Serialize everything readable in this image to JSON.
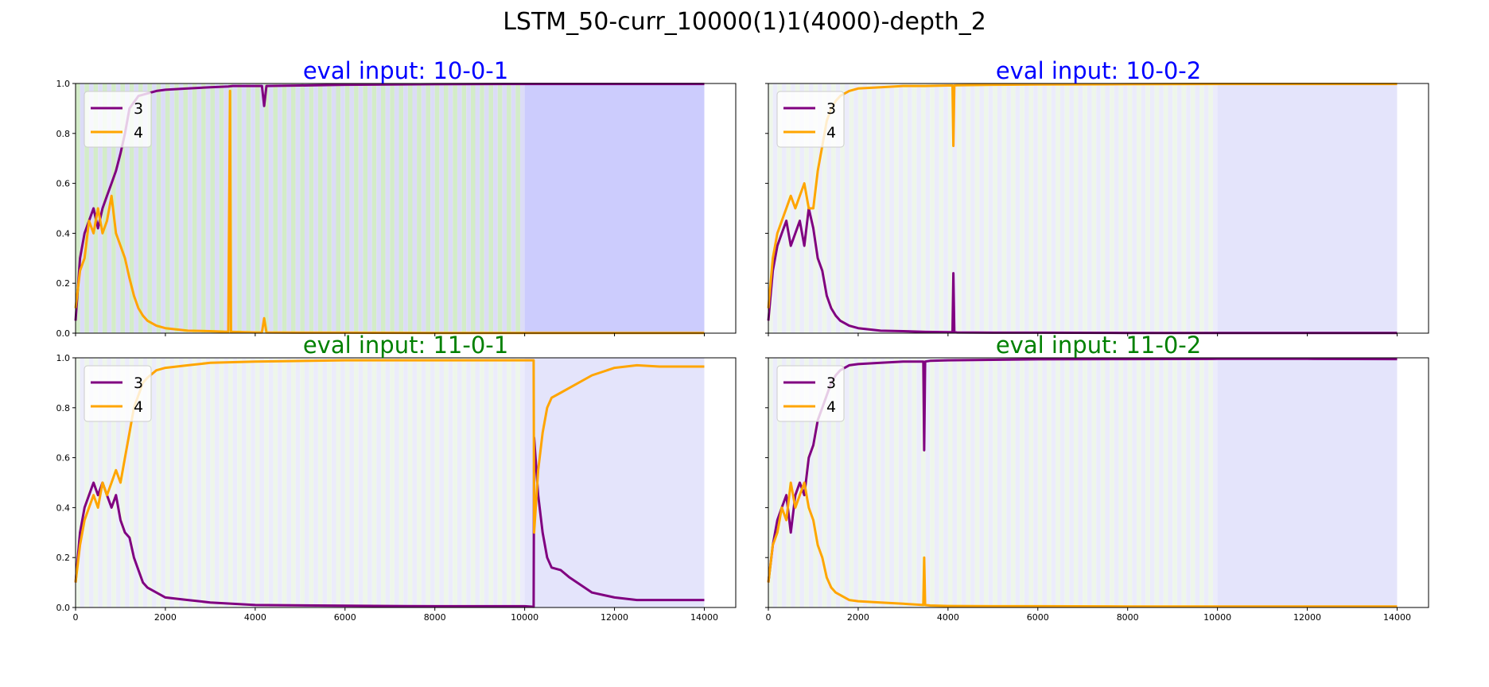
{
  "figure": {
    "title": "LSTM_50-curr_10000(1)1(4000)-depth_2"
  },
  "colors": {
    "series_3": "#800080",
    "series_4": "#ffa500",
    "title_blue": "#0000ff",
    "title_green": "#008000",
    "band_green": "#d3ecc8",
    "band_blue_light": "#dcdcf7",
    "band_blue_strong": "#ccccfd",
    "band_blue_faint": "#e4e4fb"
  },
  "chart_data": [
    {
      "type": "line",
      "title": "eval input: 10-0-1",
      "title_color": "blue",
      "xlim": [
        0,
        14700
      ],
      "ylim": [
        0,
        1
      ],
      "xticks": [
        0,
        2000,
        4000,
        6000,
        8000,
        10000,
        12000,
        14000
      ],
      "xtick_labels": [],
      "yticks": [
        0.0,
        0.2,
        0.4,
        0.6,
        0.8,
        1.0
      ],
      "ytick_labels": [
        "0.0",
        "0.2",
        "0.4",
        "0.6",
        "0.8",
        "1.0"
      ],
      "legend": "upper-left",
      "background": "green bands to 10000, solid blue 10000-14000",
      "series": [
        {
          "name": "3",
          "color": "purple",
          "x": [
            0,
            100,
            200,
            300,
            400,
            500,
            600,
            700,
            800,
            900,
            1000,
            1100,
            1200,
            1400,
            1600,
            1800,
            2000,
            2500,
            3000,
            3400,
            3500,
            4000,
            4150,
            4200,
            4250,
            5000,
            6000,
            8000,
            10000,
            12000,
            14000
          ],
          "y": [
            0.05,
            0.3,
            0.4,
            0.45,
            0.5,
            0.42,
            0.5,
            0.55,
            0.6,
            0.65,
            0.72,
            0.8,
            0.9,
            0.95,
            0.96,
            0.97,
            0.975,
            0.98,
            0.985,
            0.988,
            0.99,
            0.99,
            0.99,
            0.91,
            0.99,
            0.992,
            0.995,
            0.997,
            0.998,
            0.998,
            0.998
          ]
        },
        {
          "name": "4",
          "color": "orange",
          "x": [
            0,
            100,
            200,
            300,
            400,
            500,
            600,
            700,
            800,
            900,
            1000,
            1100,
            1200,
            1300,
            1400,
            1500,
            1600,
            1800,
            2000,
            2500,
            3000,
            3400,
            3440,
            3460,
            3500,
            4000,
            4150,
            4200,
            4250,
            5000,
            6000,
            8000,
            10000,
            12000,
            14000
          ],
          "y": [
            0.1,
            0.25,
            0.3,
            0.45,
            0.4,
            0.5,
            0.4,
            0.45,
            0.55,
            0.4,
            0.35,
            0.3,
            0.22,
            0.15,
            0.1,
            0.07,
            0.05,
            0.03,
            0.02,
            0.01,
            0.008,
            0.005,
            0.97,
            0.005,
            0.005,
            0.003,
            0.003,
            0.06,
            0.003,
            0.002,
            0.002,
            0.001,
            0.001,
            0.001,
            0.001
          ]
        }
      ]
    },
    {
      "type": "line",
      "title": "eval input: 10-0-2",
      "title_color": "blue",
      "xlim": [
        0,
        14700
      ],
      "ylim": [
        0,
        1
      ],
      "xticks": [
        0,
        2000,
        4000,
        6000,
        8000,
        10000,
        12000,
        14000
      ],
      "xtick_labels": [],
      "yticks": [
        0.0,
        0.2,
        0.4,
        0.6,
        0.8,
        1.0
      ],
      "ytick_labels": [],
      "legend": "upper-left",
      "background": "faint bands to 10000, light blue 10000-14000",
      "series": [
        {
          "name": "3",
          "color": "purple",
          "x": [
            0,
            100,
            200,
            300,
            400,
            500,
            600,
            700,
            800,
            900,
            1000,
            1100,
            1200,
            1300,
            1400,
            1500,
            1600,
            1800,
            2000,
            2500,
            3000,
            3500,
            4000,
            4100,
            4120,
            4140,
            4200,
            5000,
            6000,
            8000,
            10000,
            12000,
            14000
          ],
          "y": [
            0.05,
            0.25,
            0.35,
            0.4,
            0.45,
            0.35,
            0.4,
            0.45,
            0.35,
            0.5,
            0.42,
            0.3,
            0.25,
            0.15,
            0.1,
            0.07,
            0.05,
            0.03,
            0.02,
            0.01,
            0.008,
            0.005,
            0.004,
            0.004,
            0.24,
            0.004,
            0.003,
            0.002,
            0.002,
            0.001,
            0.001,
            0.001,
            0.001
          ]
        },
        {
          "name": "4",
          "color": "orange",
          "x": [
            0,
            100,
            200,
            300,
            400,
            500,
            600,
            700,
            800,
            900,
            1000,
            1100,
            1200,
            1300,
            1400,
            1500,
            1600,
            1800,
            2000,
            2500,
            3000,
            3500,
            4000,
            4100,
            4120,
            4140,
            4200,
            5000,
            6000,
            8000,
            10000,
            12000,
            14000
          ],
          "y": [
            0.1,
            0.3,
            0.4,
            0.45,
            0.5,
            0.55,
            0.5,
            0.55,
            0.6,
            0.5,
            0.5,
            0.65,
            0.75,
            0.85,
            0.9,
            0.93,
            0.95,
            0.97,
            0.98,
            0.985,
            0.99,
            0.99,
            0.992,
            0.992,
            0.75,
            0.992,
            0.993,
            0.995,
            0.996,
            0.997,
            0.998,
            0.998,
            0.998
          ]
        }
      ]
    },
    {
      "type": "line",
      "title": "eval input: 11-0-1",
      "title_color": "green",
      "xlim": [
        0,
        14700
      ],
      "ylim": [
        0,
        1
      ],
      "xticks": [
        0,
        2000,
        4000,
        6000,
        8000,
        10000,
        12000,
        14000
      ],
      "xtick_labels": [
        "0",
        "2000",
        "4000",
        "6000",
        "8000",
        "10000",
        "12000",
        "14000"
      ],
      "yticks": [
        0.0,
        0.2,
        0.4,
        0.6,
        0.8,
        1.0
      ],
      "ytick_labels": [
        "0.0",
        "0.2",
        "0.4",
        "0.6",
        "0.8",
        "1.0"
      ],
      "legend": "upper-left",
      "background": "faint bands to 10000, light blue 10000-14000",
      "series": [
        {
          "name": "3",
          "color": "purple",
          "x": [
            0,
            100,
            200,
            300,
            400,
            500,
            600,
            700,
            800,
            900,
            1000,
            1100,
            1200,
            1300,
            1400,
            1500,
            1600,
            1800,
            2000,
            2500,
            3000,
            4000,
            6000,
            8000,
            10000,
            10200,
            10210,
            10300,
            10400,
            10500,
            10600,
            10800,
            11000,
            11500,
            12000,
            12500,
            13000,
            13500,
            14000
          ],
          "y": [
            0.1,
            0.3,
            0.4,
            0.45,
            0.5,
            0.45,
            0.5,
            0.45,
            0.4,
            0.45,
            0.35,
            0.3,
            0.28,
            0.2,
            0.15,
            0.1,
            0.08,
            0.06,
            0.04,
            0.03,
            0.02,
            0.01,
            0.007,
            0.005,
            0.005,
            0.003,
            0.68,
            0.45,
            0.3,
            0.2,
            0.16,
            0.15,
            0.12,
            0.06,
            0.04,
            0.03,
            0.03,
            0.03,
            0.03
          ]
        },
        {
          "name": "4",
          "color": "orange",
          "x": [
            0,
            100,
            200,
            300,
            400,
            500,
            600,
            700,
            800,
            900,
            1000,
            1100,
            1200,
            1300,
            1400,
            1500,
            1600,
            1800,
            2000,
            2500,
            3000,
            4000,
            6000,
            8000,
            10000,
            10200,
            10210,
            10300,
            10400,
            10500,
            10600,
            10800,
            11000,
            11500,
            12000,
            12500,
            13000,
            13500,
            14000
          ],
          "y": [
            0.1,
            0.25,
            0.35,
            0.4,
            0.45,
            0.4,
            0.5,
            0.45,
            0.5,
            0.55,
            0.5,
            0.6,
            0.7,
            0.8,
            0.85,
            0.9,
            0.92,
            0.95,
            0.96,
            0.97,
            0.98,
            0.985,
            0.99,
            0.99,
            0.99,
            0.99,
            0.3,
            0.55,
            0.7,
            0.8,
            0.84,
            0.86,
            0.88,
            0.93,
            0.96,
            0.97,
            0.965,
            0.965,
            0.965
          ]
        }
      ]
    },
    {
      "type": "line",
      "title": "eval input: 11-0-2",
      "title_color": "green",
      "xlim": [
        0,
        14700
      ],
      "ylim": [
        0,
        1
      ],
      "xticks": [
        0,
        2000,
        4000,
        6000,
        8000,
        10000,
        12000,
        14000
      ],
      "xtick_labels": [
        "0",
        "2000",
        "4000",
        "6000",
        "8000",
        "10000",
        "12000",
        "14000"
      ],
      "yticks": [
        0.0,
        0.2,
        0.4,
        0.6,
        0.8,
        1.0
      ],
      "ytick_labels": [],
      "legend": "upper-left",
      "background": "faint bands to 10000, light blue 10000-14000",
      "series": [
        {
          "name": "3",
          "color": "purple",
          "x": [
            0,
            100,
            200,
            300,
            400,
            500,
            600,
            700,
            800,
            900,
            1000,
            1100,
            1200,
            1300,
            1400,
            1500,
            1600,
            1800,
            2000,
            2500,
            3000,
            3450,
            3470,
            3490,
            3600,
            4000,
            5000,
            6000,
            8000,
            10000,
            12000,
            14000
          ],
          "y": [
            0.1,
            0.25,
            0.35,
            0.4,
            0.45,
            0.3,
            0.45,
            0.5,
            0.45,
            0.6,
            0.65,
            0.75,
            0.8,
            0.85,
            0.9,
            0.93,
            0.95,
            0.97,
            0.975,
            0.98,
            0.985,
            0.985,
            0.63,
            0.985,
            0.988,
            0.99,
            0.992,
            0.994,
            0.995,
            0.996,
            0.996,
            0.995
          ]
        },
        {
          "name": "4",
          "color": "orange",
          "x": [
            0,
            100,
            200,
            300,
            400,
            500,
            600,
            700,
            800,
            900,
            1000,
            1100,
            1200,
            1300,
            1400,
            1500,
            1600,
            1800,
            2000,
            2500,
            3000,
            3450,
            3470,
            3490,
            3600,
            4000,
            5000,
            6000,
            8000,
            10000,
            12000,
            14000
          ],
          "y": [
            0.1,
            0.25,
            0.3,
            0.4,
            0.35,
            0.5,
            0.4,
            0.45,
            0.5,
            0.4,
            0.35,
            0.25,
            0.2,
            0.12,
            0.08,
            0.06,
            0.05,
            0.03,
            0.025,
            0.02,
            0.015,
            0.01,
            0.2,
            0.01,
            0.008,
            0.006,
            0.005,
            0.005,
            0.004,
            0.004,
            0.004,
            0.004
          ]
        }
      ]
    }
  ]
}
